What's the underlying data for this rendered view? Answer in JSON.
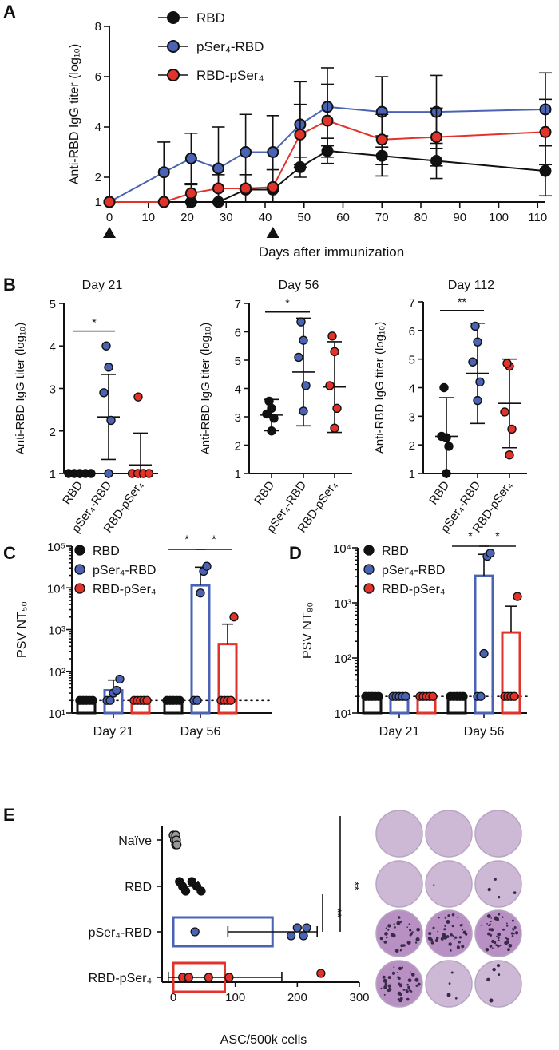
{
  "colors": {
    "RBD": "#111111",
    "pSer4-RBD": "#4a63b5",
    "RBD-pSer4": "#e2332a"
  },
  "panels": {
    "A": "A",
    "B": "B",
    "C": "C",
    "D": "D",
    "E": "E"
  },
  "legend": {
    "rbd": "RBD",
    "pser_rbd": "pSer₄-RBD",
    "rbd_pser": "RBD-pSer₄"
  },
  "chart_data": [
    {
      "panel": "A",
      "type": "line",
      "xlabel": "Days after immunization",
      "ylabel": "Anti-RBD IgG titer (log₁₀)",
      "xlim": [
        0,
        112
      ],
      "ylim": [
        1,
        8
      ],
      "xticks": [
        0,
        10,
        20,
        30,
        40,
        50,
        60,
        70,
        80,
        90,
        100,
        110
      ],
      "yticks": [
        1,
        2,
        4,
        6,
        8
      ],
      "immunization_days": [
        0,
        42
      ],
      "x": [
        0,
        14,
        21,
        28,
        35,
        42,
        49,
        56,
        70,
        84,
        112
      ],
      "series": [
        {
          "name": "RBD",
          "values": [
            1,
            1,
            1,
            1,
            1.5,
            1.5,
            2.4,
            3.05,
            2.85,
            2.65,
            2.25
          ],
          "errors": [
            0,
            0,
            0,
            0,
            0,
            0,
            0.4,
            0.5,
            0.8,
            0.7,
            1.0
          ]
        },
        {
          "name": "pSer₄-RBD",
          "values": [
            1,
            2.2,
            2.75,
            2.35,
            3.0,
            3.0,
            4.1,
            4.8,
            4.6,
            4.6,
            4.7
          ],
          "errors": [
            0,
            1.2,
            1.0,
            1.65,
            1.5,
            1.45,
            1.7,
            1.55,
            1.4,
            1.45,
            1.45
          ]
        },
        {
          "name": "RBD-pSer₄",
          "values": [
            1,
            1,
            1.35,
            1.55,
            1.55,
            1.6,
            3.7,
            4.25,
            3.5,
            3.6,
            3.8
          ],
          "errors": [
            0,
            0,
            0.35,
            0.55,
            0.55,
            0.7,
            1.2,
            1.45,
            1.0,
            1.15,
            1.3
          ]
        }
      ]
    },
    {
      "panel": "B",
      "type": "scatter",
      "ylabel": "Anti-RBD IgG titer (log₁₀)",
      "categories": [
        "RBD",
        "pSer₄-RBD",
        "RBD-pSer₄"
      ],
      "subplots": [
        {
          "title": "Day 21",
          "ylim": [
            1,
            5
          ],
          "yticks": [
            1,
            2,
            3,
            4,
            5
          ],
          "points": [
            [
              1,
              1,
              1,
              1,
              1
            ],
            [
              1,
              2.25,
              2.9,
              3.5,
              4.0
            ],
            [
              1,
              1,
              1,
              1,
              2.8
            ]
          ],
          "mean": [
            1,
            2.33,
            1.2
          ],
          "sd": [
            0,
            1.0,
            0.75
          ],
          "sig": [
            {
              "from": 0,
              "to": 1,
              "label": "*"
            }
          ]
        },
        {
          "title": "Day 56",
          "ylim": [
            1,
            7
          ],
          "yticks": [
            1,
            2,
            3,
            4,
            5,
            6,
            7
          ],
          "points": [
            [
              2.5,
              2.95,
              3.1,
              3.3,
              3.55
            ],
            [
              3.2,
              4.1,
              5.1,
              5.7,
              6.35
            ],
            [
              2.6,
              3.3,
              4.1,
              5.3,
              5.85
            ]
          ],
          "mean": [
            3.06,
            4.58,
            4.05
          ],
          "sd": [
            0.55,
            1.9,
            1.6
          ],
          "sig": [
            {
              "from": 0,
              "to": 1,
              "label": "*"
            }
          ]
        },
        {
          "title": "Day 112",
          "ylim": [
            1,
            7
          ],
          "yticks": [
            1,
            2,
            3,
            4,
            5,
            6,
            7
          ],
          "points": [
            [
              1.0,
              1.95,
              2.3,
              2.25,
              4.0
            ],
            [
              3.55,
              4.2,
              4.9,
              5.6,
              6.15
            ],
            [
              1.65,
              2.55,
              3.15,
              4.75,
              4.85
            ]
          ],
          "mean": [
            2.3,
            4.5,
            3.45
          ],
          "sd": [
            1.35,
            1.75,
            1.55
          ],
          "sig": [
            {
              "from": 0,
              "to": 1,
              "label": "**"
            }
          ]
        }
      ]
    },
    {
      "panel": "C",
      "type": "bar",
      "ylabel": "PSV NT₅₀",
      "yscale": "log",
      "ylim": [
        10,
        100000
      ],
      "yticks": [
        "10¹",
        "10²",
        "10³",
        "10⁴",
        "10⁵"
      ],
      "groups": [
        "Day 21",
        "Day 56"
      ],
      "detection_limit": 20,
      "series": [
        {
          "name": "RBD",
          "values": [
            20,
            20
          ],
          "points": [
            [
              20,
              20,
              20,
              20,
              20
            ],
            [
              20,
              20,
              20,
              20,
              20
            ]
          ]
        },
        {
          "name": "pSer₄-RBD",
          "values": [
            35,
            11500
          ],
          "points": [
            [
              20,
              20,
              30,
              35,
              65
            ],
            [
              20,
              20,
              7500,
              25000,
              33000
            ]
          ]
        },
        {
          "name": "RBD-pSer₄",
          "values": [
            20,
            450
          ],
          "points": [
            [
              20,
              20,
              20,
              20,
              20
            ],
            [
              20,
              20,
              20,
              20,
              2000
            ]
          ]
        }
      ],
      "sig": [
        {
          "group": "Day 56",
          "from": "RBD",
          "to": "pSer₄-RBD",
          "label": "*"
        },
        {
          "group": "Day 56",
          "from": "pSer₄-RBD",
          "to": "RBD-pSer₄",
          "label": "*"
        }
      ]
    },
    {
      "panel": "D",
      "type": "bar",
      "ylabel": "PSV NT₈₀",
      "yscale": "log",
      "ylim": [
        10,
        10000
      ],
      "yticks": [
        "10¹",
        "10²",
        "10³",
        "10⁴"
      ],
      "groups": [
        "Day 21",
        "Day 56"
      ],
      "detection_limit": 20,
      "series": [
        {
          "name": "RBD",
          "values": [
            20,
            20
          ],
          "points": [
            [
              20,
              20,
              20,
              20,
              20
            ],
            [
              20,
              20,
              20,
              20,
              20
            ]
          ]
        },
        {
          "name": "pSer₄-RBD",
          "values": [
            20,
            3100
          ],
          "points": [
            [
              20,
              20,
              20,
              20,
              20
            ],
            [
              20,
              20,
              120,
              7000,
              8000
            ]
          ]
        },
        {
          "name": "RBD-pSer₄",
          "values": [
            20,
            290
          ],
          "points": [
            [
              20,
              20,
              20,
              20,
              20
            ],
            [
              20,
              20,
              20,
              20,
              1300
            ]
          ]
        }
      ],
      "sig": [
        {
          "group": "Day 56",
          "from": "RBD",
          "to": "pSer₄-RBD",
          "label": "*"
        },
        {
          "group": "Day 56",
          "from": "pSer₄-RBD",
          "to": "RBD-pSer₄",
          "label": "*"
        }
      ]
    },
    {
      "panel": "E",
      "type": "bar",
      "orientation": "horizontal",
      "xlabel": "ASC/500k cells",
      "xlim": [
        0,
        300
      ],
      "xticks": [
        0,
        100,
        200,
        300
      ],
      "categories": [
        "Naïve",
        "RBD",
        "pSer₄-RBD",
        "RBD-pSer₄"
      ],
      "values": [
        3,
        28,
        160,
        83
      ],
      "sd": [
        2,
        12,
        72,
        92
      ],
      "points": [
        [
          0,
          2,
          4,
          4,
          5,
          6
        ],
        [
          10,
          15,
          20,
          30,
          38,
          45
        ],
        [
          35,
          190,
          200,
          210,
          215
        ],
        [
          15,
          25,
          57,
          90,
          238
        ]
      ],
      "sig": [
        {
          "from": "pSer₄-RBD",
          "to": "RBD",
          "label": "**"
        },
        {
          "from": "pSer₄-RBD",
          "to": "Naïve",
          "label": "**"
        }
      ],
      "wells_image": "ELISpot wells, 4 rows × 3 columns"
    }
  ]
}
